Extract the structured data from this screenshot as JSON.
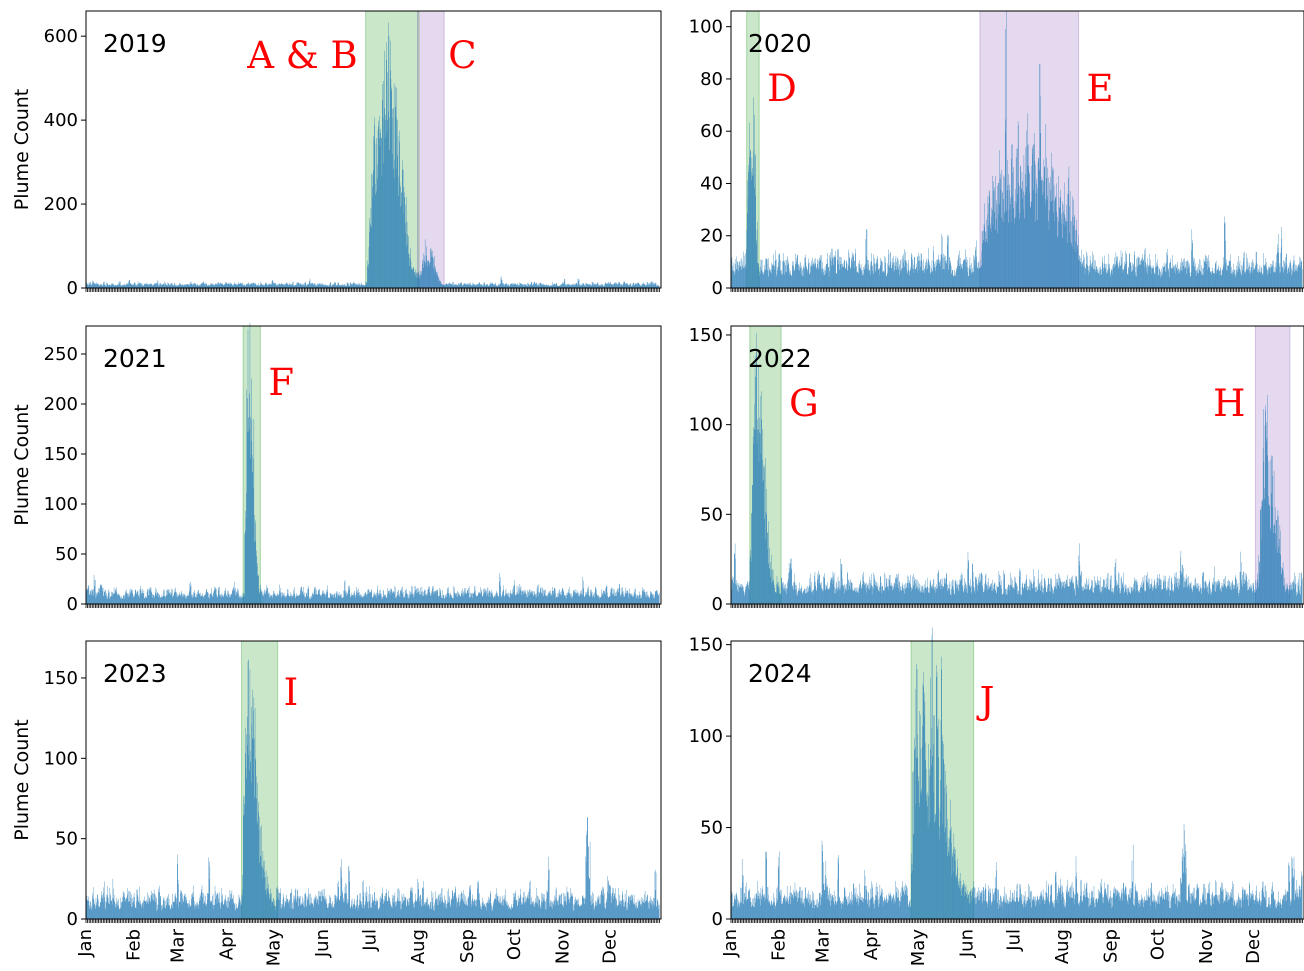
{
  "colors": {
    "bar": "#1f77b4",
    "green_band": "#2ca02c",
    "purple_band": "#9467bd",
    "event_label": "#ff0000"
  },
  "chart_data": [
    {
      "type": "bar",
      "year": "2019",
      "ylabel": "Plume Count",
      "ylim": [
        0,
        660
      ],
      "yticks": [
        0,
        200,
        400,
        600
      ],
      "months": [],
      "baseline": 10,
      "noise": 8,
      "spike": 0.05,
      "peaks": [
        {
          "start": "06-28",
          "end": "07-31",
          "values": [
            15,
            60,
            160,
            260,
            330,
            390,
            405,
            410,
            400,
            395,
            470,
            520,
            600,
            630,
            590,
            560,
            540,
            500,
            470,
            440,
            400,
            360,
            320,
            280,
            240,
            200,
            160,
            120,
            90,
            70,
            55,
            45,
            40,
            38
          ]
        },
        {
          "start": "08-01",
          "end": "08-14",
          "values": [
            40,
            45,
            80,
            110,
            95,
            75,
            80,
            90,
            85,
            70,
            60,
            40,
            25,
            18
          ]
        }
      ],
      "highlights": [
        {
          "label": "A & B",
          "color": "green",
          "start": "06-28",
          "end": "07-31"
        },
        {
          "label": "C",
          "color": "purple",
          "start": "07-31",
          "end": "08-16"
        }
      ]
    },
    {
      "type": "bar",
      "year": "2020",
      "ylabel": "",
      "ylim": [
        0,
        106
      ],
      "yticks": [
        0,
        20,
        40,
        60,
        80,
        100
      ],
      "months": [],
      "baseline": 10,
      "noise": 7,
      "spike": 0.06,
      "peaks": [
        {
          "start": "01-11",
          "end": "01-17",
          "values": [
            40,
            62,
            58,
            55,
            74,
            56,
            30
          ]
        },
        {
          "start": "06-10",
          "end": "08-10",
          "values": [
            22,
            26,
            30,
            28,
            35,
            40,
            36,
            42,
            45,
            40,
            38,
            55,
            44,
            41,
            46,
            100,
            48,
            42,
            45,
            60,
            44,
            40,
            50,
            62,
            45,
            48,
            42,
            47,
            55,
            66,
            48,
            44,
            52,
            60,
            45,
            42,
            48,
            78,
            50,
            46,
            44,
            58,
            42,
            40,
            48,
            55,
            40,
            38,
            35,
            42,
            38,
            32,
            35,
            40,
            30,
            45,
            35,
            28,
            32,
            26,
            24,
            22
          ]
        }
      ],
      "highlights": [
        {
          "label": "D",
          "color": "green",
          "start": "01-11",
          "end": "01-18"
        },
        {
          "label": "E",
          "color": "purple",
          "start": "06-09",
          "end": "08-10"
        }
      ]
    },
    {
      "type": "bar",
      "year": "2021",
      "ylabel": "Plume Count",
      "ylim": [
        0,
        278
      ],
      "yticks": [
        0,
        50,
        100,
        150,
        200,
        250
      ],
      "months": [],
      "baseline": 12,
      "noise": 10,
      "spike": 0.05,
      "peaks": [
        {
          "start": "04-12",
          "end": "04-20",
          "values": [
            100,
            200,
            265,
            260,
            250,
            170,
            90,
            60,
            40
          ]
        }
      ],
      "highlights": [
        {
          "label": "F",
          "color": "green",
          "start": "04-11",
          "end": "04-21"
        }
      ]
    },
    {
      "type": "bar",
      "year": "2022",
      "ylabel": "",
      "ylim": [
        0,
        155
      ],
      "yticks": [
        0,
        50,
        100,
        150
      ],
      "months": [],
      "baseline": 12,
      "noise": 10,
      "spike": 0.06,
      "peaks": [
        {
          "start": "01-13",
          "end": "01-27",
          "values": [
            40,
            75,
            110,
            140,
            148,
            135,
            120,
            110,
            95,
            80,
            60,
            45,
            35,
            25,
            20
          ]
        },
        {
          "start": "12-04",
          "end": "12-20",
          "values": [
            25,
            50,
            80,
            104,
            131,
            110,
            90,
            75,
            80,
            70,
            60,
            50,
            50,
            40,
            30,
            22,
            15
          ]
        }
      ],
      "highlights": [
        {
          "label": "G",
          "color": "green",
          "start": "01-13",
          "end": "02-01"
        },
        {
          "label": "H",
          "color": "purple",
          "start": "12-02",
          "end": "12-23"
        }
      ]
    },
    {
      "type": "bar",
      "year": "2023",
      "ylabel": "Plume Count",
      "ylim": [
        0,
        173
      ],
      "yticks": [
        0,
        50,
        100,
        150
      ],
      "months": [],
      "baseline": 13,
      "noise": 11,
      "spike": 0.06,
      "peaks": [
        {
          "start": "04-10",
          "end": "04-30",
          "values": [
            25,
            70,
            110,
            140,
            165,
            160,
            145,
            140,
            120,
            100,
            80,
            60,
            55,
            45,
            40,
            30,
            25,
            20,
            18,
            15,
            14
          ]
        },
        {
          "start": "11-15",
          "end": "11-17",
          "values": [
            55,
            77,
            45
          ]
        }
      ],
      "highlights": [
        {
          "label": "I",
          "color": "green",
          "start": "04-10",
          "end": "05-02"
        }
      ]
    },
    {
      "type": "bar",
      "year": "2024",
      "ylabel": "",
      "ylim": [
        0,
        152
      ],
      "yticks": [
        0,
        50,
        100,
        150
      ],
      "months": [],
      "baseline": 14,
      "noise": 11,
      "spike": 0.06,
      "peaks": [
        {
          "start": "04-26",
          "end": "06-03",
          "values": [
            40,
            80,
            100,
            143,
            120,
            110,
            90,
            130,
            140,
            100,
            80,
            95,
            120,
            145,
            110,
            90,
            130,
            100,
            70,
            140,
            90,
            80,
            70,
            60,
            50,
            60,
            40,
            45,
            35,
            30,
            28,
            25,
            22,
            20,
            18,
            17,
            16,
            15,
            15
          ]
        },
        {
          "start": "10-16",
          "end": "10-18",
          "values": [
            45,
            60,
            40
          ]
        }
      ],
      "highlights": [
        {
          "label": "J",
          "color": "green",
          "start": "04-26",
          "end": "06-04"
        }
      ]
    }
  ],
  "x_months_bottom": [
    "Jan",
    "Feb",
    "Mar",
    "Apr",
    "May",
    "Jun",
    "Jul",
    "Aug",
    "Sep",
    "Oct",
    "Nov",
    "Dec"
  ]
}
